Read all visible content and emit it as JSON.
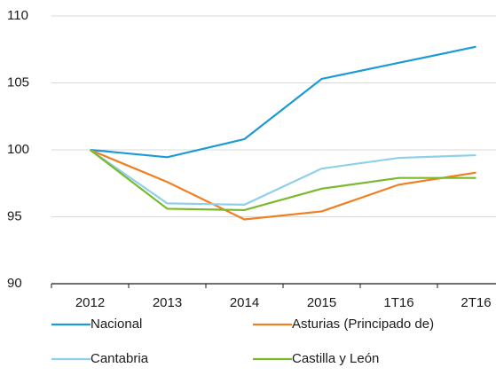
{
  "chart_data": {
    "type": "line",
    "categories": [
      "2012",
      "2013",
      "2014",
      "2015",
      "1T16",
      "2T16"
    ],
    "series": [
      {
        "name": "Nacional",
        "color": "#1a9ad6",
        "values": [
          100,
          99.45,
          100.8,
          105.3,
          106.5,
          107.7
        ]
      },
      {
        "name": "Asturias (Principado de)",
        "color": "#f07f22",
        "values": [
          100,
          97.6,
          94.8,
          95.4,
          97.4,
          98.3
        ]
      },
      {
        "name": "Cantabria",
        "color": "#8fcfea",
        "values": [
          100,
          96.0,
          95.9,
          98.6,
          99.4,
          99.6
        ]
      },
      {
        "name": "Castilla y León",
        "color": "#7ab929",
        "values": [
          100,
          95.6,
          95.5,
          97.1,
          97.9,
          97.9
        ]
      }
    ],
    "ylim": [
      90,
      110
    ],
    "yticks": [
      90,
      95,
      100,
      105,
      110
    ],
    "grid": true
  }
}
